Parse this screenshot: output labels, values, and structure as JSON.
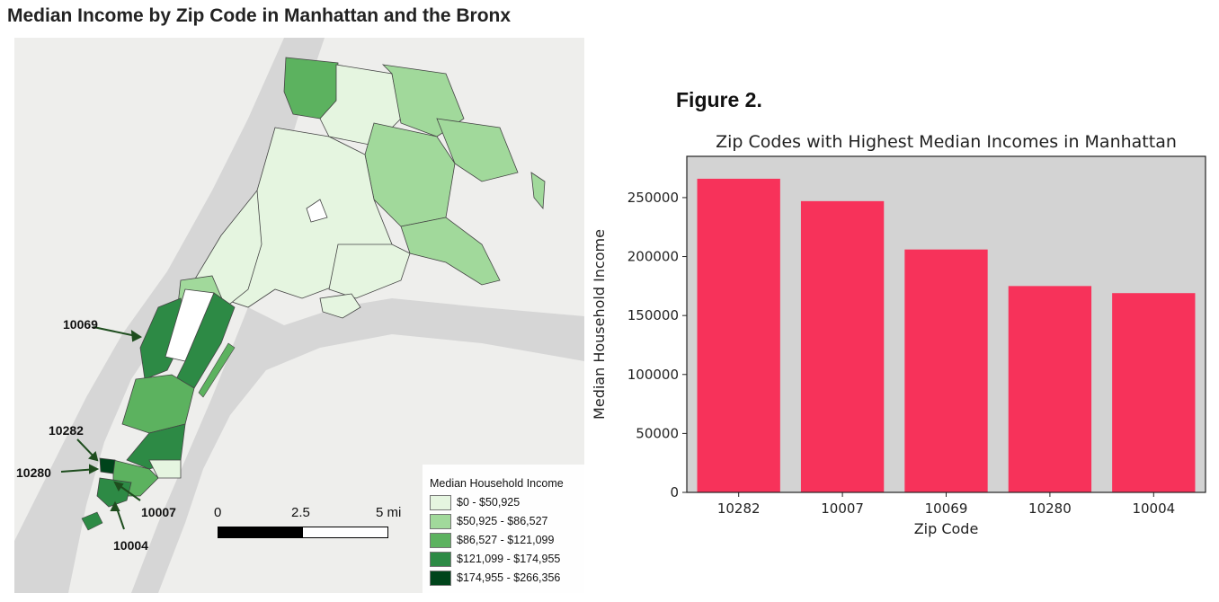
{
  "page": {
    "title": "Median Income by Zip Code in Manhattan and the Bronx"
  },
  "map": {
    "callouts": [
      "10069",
      "10282",
      "10280",
      "10007",
      "10004"
    ],
    "scale": {
      "labels": [
        "0",
        "2.5",
        "5 mi"
      ]
    },
    "legend": {
      "title": "Median Household Income",
      "items": [
        {
          "label": "$0 - $50,925",
          "color": "#e5f5e0"
        },
        {
          "label": "$50,925 - $86,527",
          "color": "#a1d99b"
        },
        {
          "label": "$86,527 - $121,099",
          "color": "#5cb25f"
        },
        {
          "label": "$121,099 - $174,955",
          "color": "#2d8a45"
        },
        {
          "label": "$174,955 - $266,356",
          "color": "#00441b"
        }
      ]
    }
  },
  "figure_label": "Figure 2.",
  "chart_data": {
    "type": "bar",
    "title": "Zip Codes with Highest Median Incomes in Manhattan",
    "xlabel": "Zip Code",
    "ylabel": "Median Household Income",
    "categories": [
      "10282",
      "10007",
      "10069",
      "10280",
      "10004"
    ],
    "values": [
      266000,
      247000,
      206000,
      175000,
      169000
    ],
    "ylim": [
      0,
      285000
    ],
    "yticks": [
      0,
      50000,
      100000,
      150000,
      200000,
      250000
    ],
    "bar_color": "#f7325a",
    "background": "#d3d3d3",
    "grid": false
  }
}
